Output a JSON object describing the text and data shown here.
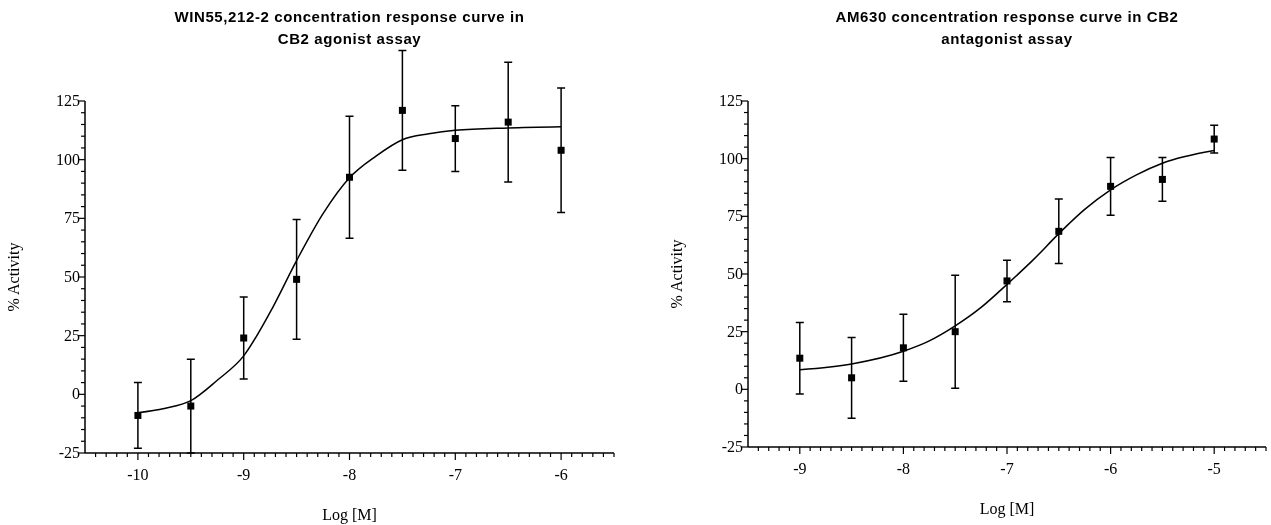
{
  "chart_data": [
    {
      "type": "scatter",
      "title": "WIN55,212-2 concentration response curve in CB2 agonist assay",
      "xlabel": "Log [M]",
      "ylabel": "% Activity",
      "xlim": [
        -10.5,
        -5.5
      ],
      "ylim": [
        -25,
        125
      ],
      "xticks": [
        {
          "value": -10.4,
          "label": null
        },
        {
          "value": -10.3,
          "label": null
        },
        {
          "value": -10.2,
          "label": null
        },
        {
          "value": -10.1,
          "label": null
        },
        -10,
        {
          "value": -9.9,
          "label": null
        },
        {
          "value": -9.8,
          "label": null
        },
        {
          "value": -9.7,
          "label": null
        },
        {
          "value": -9.6,
          "label": null
        },
        {
          "value": -9.5,
          "label": null
        },
        {
          "value": -9.4,
          "label": null
        },
        {
          "value": -9.3,
          "label": null
        },
        {
          "value": -9.2,
          "label": null
        },
        {
          "value": -9.1,
          "label": null
        },
        -9,
        {
          "value": -8.9,
          "label": null
        },
        {
          "value": -8.8,
          "label": null
        },
        {
          "value": -8.7,
          "label": null
        },
        {
          "value": -8.6,
          "label": null
        },
        {
          "value": -8.5,
          "label": null
        },
        {
          "value": -8.4,
          "label": null
        },
        {
          "value": -8.3,
          "label": null
        },
        {
          "value": -8.2,
          "label": null
        },
        {
          "value": -8.1,
          "label": null
        },
        -8,
        {
          "value": -7.9,
          "label": null
        },
        {
          "value": -7.8,
          "label": null
        },
        {
          "value": -7.7,
          "label": null
        },
        {
          "value": -7.6,
          "label": null
        },
        {
          "value": -7.5,
          "label": null
        },
        {
          "value": -7.4,
          "label": null
        },
        {
          "value": -7.3,
          "label": null
        },
        {
          "value": -7.2,
          "label": null
        },
        {
          "value": -7.1,
          "label": null
        },
        -7,
        {
          "value": -6.9,
          "label": null
        },
        {
          "value": -6.8,
          "label": null
        },
        {
          "value": -6.7,
          "label": null
        },
        {
          "value": -6.6,
          "label": null
        },
        {
          "value": -6.5,
          "label": null
        },
        {
          "value": -6.4,
          "label": null
        },
        {
          "value": -6.3,
          "label": null
        },
        {
          "value": -6.2,
          "label": null
        },
        {
          "value": -6.1,
          "label": null
        },
        -6,
        {
          "value": -5.9,
          "label": null
        },
        {
          "value": -5.8,
          "label": null
        },
        {
          "value": -5.7,
          "label": null
        },
        {
          "value": -5.6,
          "label": null
        },
        {
          "value": -5.5,
          "label": null
        }
      ],
      "yticks": [
        -25,
        {
          "value": -20,
          "label": null
        },
        {
          "value": -15,
          "label": null
        },
        {
          "value": -10,
          "label": null
        },
        {
          "value": -5,
          "label": null
        },
        0,
        {
          "value": 5,
          "label": null
        },
        {
          "value": 10,
          "label": null
        },
        {
          "value": 15,
          "label": null
        },
        {
          "value": 20,
          "label": null
        },
        25,
        {
          "value": 30,
          "label": null
        },
        {
          "value": 35,
          "label": null
        },
        {
          "value": 40,
          "label": null
        },
        {
          "value": 45,
          "label": null
        },
        50,
        {
          "value": 55,
          "label": null
        },
        {
          "value": 60,
          "label": null
        },
        {
          "value": 65,
          "label": null
        },
        {
          "value": 70,
          "label": null
        },
        75,
        {
          "value": 80,
          "label": null
        },
        {
          "value": 85,
          "label": null
        },
        {
          "value": 90,
          "label": null
        },
        {
          "value": 95,
          "label": null
        },
        100,
        {
          "value": 105,
          "label": null
        },
        {
          "value": 110,
          "label": null
        },
        {
          "value": 115,
          "label": null
        },
        {
          "value": 120,
          "label": null
        },
        125
      ],
      "x": [
        -10,
        -9.5,
        -9,
        -8.5,
        -8,
        -7.5,
        -7,
        -6.5,
        -6
      ],
      "series": [
        {
          "type": "scatter",
          "color": "#000000",
          "marker": "square",
          "values": [
            -9,
            -5,
            24,
            49,
            92.5,
            121,
            109,
            116,
            104
          ],
          "errors": [
            14,
            20,
            17.5,
            25.5,
            26,
            25.5,
            14,
            25.5,
            26.5
          ]
        },
        {
          "type": "line",
          "color": "#000000",
          "marker": "none",
          "x": [
            -10,
            -9.75,
            -9.5,
            -9.25,
            -9,
            -8.75,
            -8.5,
            -8.25,
            -8,
            -7.75,
            -7.5,
            -7.25,
            -7,
            -6.5,
            -6
          ],
          "values": [
            -7.8,
            -6,
            -2.7,
            6,
            16.4,
            35,
            57,
            77,
            92.3,
            101.5,
            108.5,
            111,
            112.5,
            113.5,
            114
          ]
        }
      ]
    },
    {
      "type": "scatter",
      "title": "AM630 concentration response curve in CB2 antagonist assay",
      "xlabel": "Log [M]",
      "ylabel": "% Activity",
      "xlim": [
        -9.5,
        -4.5
      ],
      "ylim": [
        -25,
        125
      ],
      "xticks": [
        {
          "value": -9.4,
          "label": null
        },
        {
          "value": -9.3,
          "label": null
        },
        {
          "value": -9.2,
          "label": null
        },
        {
          "value": -9.1,
          "label": null
        },
        -9,
        {
          "value": -8.9,
          "label": null
        },
        {
          "value": -8.8,
          "label": null
        },
        {
          "value": -8.7,
          "label": null
        },
        {
          "value": -8.6,
          "label": null
        },
        {
          "value": -8.5,
          "label": null
        },
        {
          "value": -8.4,
          "label": null
        },
        {
          "value": -8.3,
          "label": null
        },
        {
          "value": -8.2,
          "label": null
        },
        {
          "value": -8.1,
          "label": null
        },
        -8,
        {
          "value": -7.9,
          "label": null
        },
        {
          "value": -7.8,
          "label": null
        },
        {
          "value": -7.7,
          "label": null
        },
        {
          "value": -7.6,
          "label": null
        },
        {
          "value": -7.5,
          "label": null
        },
        {
          "value": -7.4,
          "label": null
        },
        {
          "value": -7.3,
          "label": null
        },
        {
          "value": -7.2,
          "label": null
        },
        {
          "value": -7.1,
          "label": null
        },
        -7,
        {
          "value": -6.9,
          "label": null
        },
        {
          "value": -6.8,
          "label": null
        },
        {
          "value": -6.7,
          "label": null
        },
        {
          "value": -6.6,
          "label": null
        },
        {
          "value": -6.5,
          "label": null
        },
        {
          "value": -6.4,
          "label": null
        },
        {
          "value": -6.3,
          "label": null
        },
        {
          "value": -6.2,
          "label": null
        },
        {
          "value": -6.1,
          "label": null
        },
        -6,
        {
          "value": -5.9,
          "label": null
        },
        {
          "value": -5.8,
          "label": null
        },
        {
          "value": -5.7,
          "label": null
        },
        {
          "value": -5.6,
          "label": null
        },
        {
          "value": -5.5,
          "label": null
        },
        {
          "value": -5.4,
          "label": null
        },
        {
          "value": -5.3,
          "label": null
        },
        {
          "value": -5.2,
          "label": null
        },
        {
          "value": -5.1,
          "label": null
        },
        -5,
        {
          "value": -4.9,
          "label": null
        },
        {
          "value": -4.8,
          "label": null
        },
        {
          "value": -4.7,
          "label": null
        },
        {
          "value": -4.6,
          "label": null
        },
        {
          "value": -4.5,
          "label": null
        }
      ],
      "yticks": [
        -25,
        {
          "value": -20,
          "label": null
        },
        {
          "value": -15,
          "label": null
        },
        {
          "value": -10,
          "label": null
        },
        {
          "value": -5,
          "label": null
        },
        0,
        {
          "value": 5,
          "label": null
        },
        {
          "value": 10,
          "label": null
        },
        {
          "value": 15,
          "label": null
        },
        {
          "value": 20,
          "label": null
        },
        25,
        {
          "value": 30,
          "label": null
        },
        {
          "value": 35,
          "label": null
        },
        {
          "value": 40,
          "label": null
        },
        {
          "value": 45,
          "label": null
        },
        50,
        {
          "value": 55,
          "label": null
        },
        {
          "value": 60,
          "label": null
        },
        {
          "value": 65,
          "label": null
        },
        {
          "value": 70,
          "label": null
        },
        75,
        {
          "value": 80,
          "label": null
        },
        {
          "value": 85,
          "label": null
        },
        {
          "value": 90,
          "label": null
        },
        {
          "value": 95,
          "label": null
        },
        100,
        {
          "value": 105,
          "label": null
        },
        {
          "value": 110,
          "label": null
        },
        {
          "value": 115,
          "label": null
        },
        {
          "value": 120,
          "label": null
        },
        125
      ],
      "x": [
        -9,
        -8.5,
        -8,
        -7.5,
        -7,
        -6.5,
        -6,
        -5.5,
        -5
      ],
      "series": [
        {
          "type": "scatter",
          "color": "#000000",
          "marker": "square",
          "values": [
            13.5,
            5,
            18,
            25,
            47,
            68.5,
            88,
            91,
            108.5
          ],
          "errors": [
            15.5,
            17.5,
            14.5,
            24.5,
            9,
            14,
            12.5,
            9.5,
            6
          ]
        },
        {
          "type": "line",
          "color": "#000000",
          "marker": "none",
          "x": [
            -9,
            -8.5,
            -8,
            -7.75,
            -7.5,
            -7.25,
            -7,
            -6.75,
            -6.5,
            -6.25,
            -6,
            -5.75,
            -5.5,
            -5
          ],
          "values": [
            8.5,
            11,
            16.5,
            21,
            27.5,
            35.5,
            45.5,
            56,
            67.5,
            78,
            86.5,
            93,
            98,
            103.5
          ]
        }
      ]
    }
  ]
}
